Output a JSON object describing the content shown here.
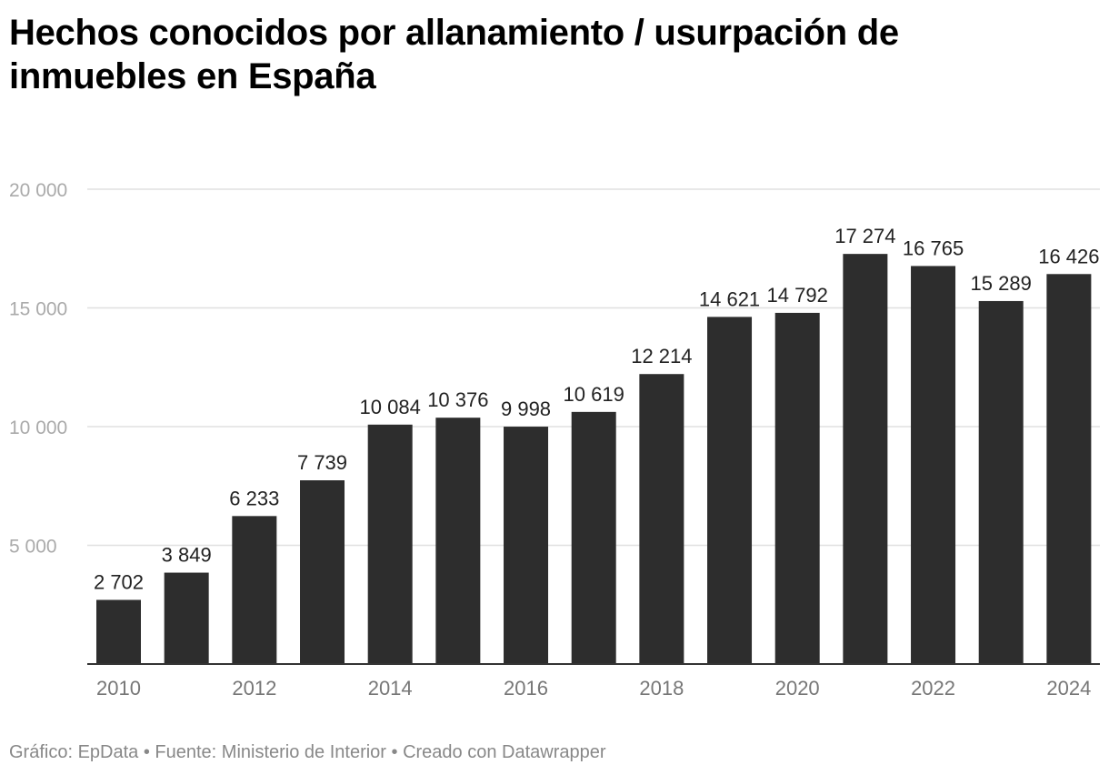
{
  "chart_data": {
    "type": "bar",
    "title": "Hechos conocidos por allanamiento / usurpación de inmuebles en España",
    "xlabel": "",
    "ylabel": "",
    "categories": [
      "2010",
      "2011",
      "2012",
      "2013",
      "2014",
      "2015",
      "2016",
      "2017",
      "2018",
      "2019",
      "2020",
      "2021",
      "2022",
      "2023",
      "2024"
    ],
    "values": [
      2702,
      3849,
      6233,
      7739,
      10084,
      10376,
      9998,
      10619,
      12214,
      14621,
      14792,
      17274,
      16765,
      15289,
      16426
    ],
    "value_labels": [
      "2 702",
      "3 849",
      "6 233",
      "7 739",
      "10 084",
      "10 376",
      "9 998",
      "10 619",
      "12 214",
      "14 621",
      "14 792",
      "17 274",
      "16 765",
      "15 289",
      "16 426"
    ],
    "x_tick_labels": [
      "2010",
      "2012",
      "2014",
      "2016",
      "2018",
      "2020",
      "2022",
      "2024"
    ],
    "y_ticks": [
      5000,
      10000,
      15000,
      20000
    ],
    "y_tick_labels": [
      "5 000",
      "10 000",
      "15 000",
      "20 000"
    ],
    "ylim": [
      0,
      20000
    ],
    "grid": true,
    "bar_color": "#2d2d2d",
    "grid_color": "#e0e0e0",
    "axis_color": "#333333"
  },
  "footer": {
    "text": "Gráfico: EpData • Fuente: Ministerio de Interior • Creado con Datawrapper"
  }
}
